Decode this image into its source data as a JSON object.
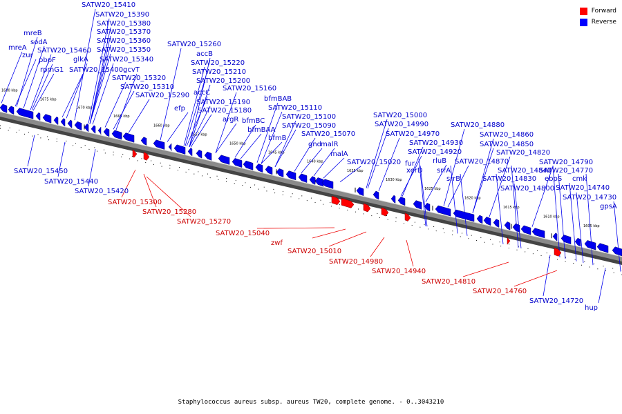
{
  "legend": {
    "forward_label": "Forward",
    "reverse_label": "Reverse",
    "forward_color": "#ff0000",
    "reverse_color": "#0000ff"
  },
  "caption": "Staphylococcus aureus subsp. aureus TW20, complete genome. - 0..3043210",
  "kbp_ticks": [
    "1680 kbp",
    "1675 kbp",
    "1670 kbp",
    "1665 kbp",
    "1660 kbp",
    "1655 kbp",
    "1650 kbp",
    "1645 kbp",
    "1640 kbp",
    "1635 kbp",
    "1630 kbp",
    "1625 kbp",
    "1620 kbp",
    "1615 kbp",
    "1610 kbp",
    "1605 kbp"
  ],
  "reverse_labels": [
    "SATW20_15410",
    "SATW20_15390",
    "SATW20_15380",
    "SATW20_15370",
    "SATW20_15360",
    "SATW20_15350",
    "SATW20_15340",
    "mreB",
    "sodA",
    "mreA",
    "zur",
    "SATW20_15460",
    "pbpF",
    "glkA",
    "rpmG1",
    "SATW20_15400",
    "gcvT",
    "SATW20_15320",
    "SATW20_15310",
    "SATW20_15290",
    "SATW20_15260",
    "accB",
    "SATW20_15220",
    "SATW20_15210",
    "SATW20_15200",
    "SATW20_15160",
    "accC",
    "SATW20_15190",
    "efp",
    "SATW20_15180",
    "argR",
    "bfmBAB",
    "SATW20_15110",
    "SATW20_15100",
    "bfmBC",
    "bfmBAA",
    "SATW20_15090",
    "bfmB",
    "SATW20_15070",
    "gnd",
    "malR",
    "malA",
    "SATW20_15000",
    "SATW20_14990",
    "SATW20_14970",
    "SATW20_14930",
    "SATW20_14920",
    "SATW20_15020",
    "fur",
    "xerD",
    "rluB",
    "srrA",
    "srrB",
    "SATW20_14880",
    "SATW20_14860",
    "SATW20_14850",
    "SATW20_14820",
    "SATW20_14870",
    "SATW20_14840",
    "SATW20_14830",
    "SATW20_14800",
    "SATW20_14790",
    "SATW20_14770",
    "ebpS",
    "cmk",
    "SATW20_14740",
    "SATW20_14730",
    "gpsA",
    "SATW20_15450",
    "SATW20_15440",
    "SATW20_15420",
    "SATW20_14720",
    "hup"
  ],
  "forward_labels": [
    "SATW20_15300",
    "SATW20_15280",
    "SATW20_15270",
    "SATW20_15040",
    "zwf",
    "SATW20_15010",
    "SATW20_14980",
    "SATW20_14940",
    "SATW20_14810",
    "SATW20_14760"
  ]
}
